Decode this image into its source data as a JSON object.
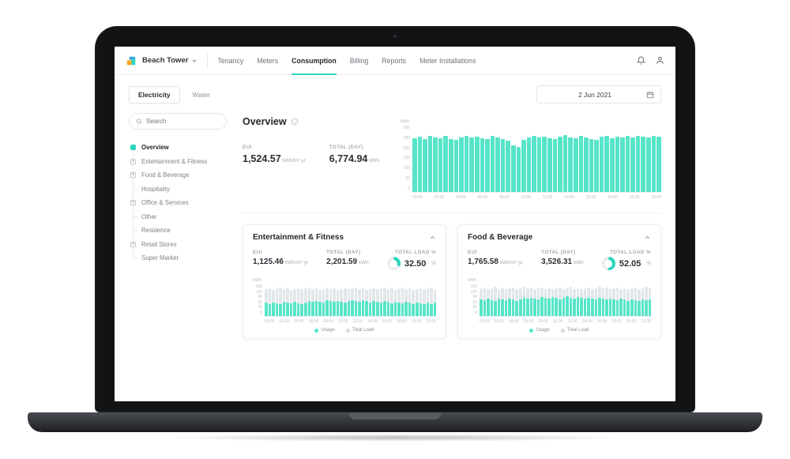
{
  "theme": {
    "accent": "#2BD4BD",
    "bar_fill": "#57E4C8",
    "bar_bg": "#E3E7EA"
  },
  "header": {
    "workspace": "Beach Tower",
    "nav_items": [
      "Tenancy",
      "Meters",
      "Consumption",
      "Billing",
      "Reports",
      "Meter Installations"
    ],
    "active_nav": "Consumption"
  },
  "toolbar": {
    "tabs": [
      "Electricity",
      "Water"
    ],
    "active_tab": "Electricity",
    "date_value": "2 Jun 2021"
  },
  "sidebar": {
    "search_placeholder": "Search",
    "tree": [
      {
        "label": "Overview",
        "type": "active"
      },
      {
        "label": "Entertainment & Fitness",
        "type": "expand"
      },
      {
        "label": "Food & Beverage",
        "type": "expand"
      },
      {
        "label": "Hospitality",
        "type": "leaf"
      },
      {
        "label": "Office & Services",
        "type": "expand"
      },
      {
        "label": "Other",
        "type": "leaf"
      },
      {
        "label": "Residence",
        "type": "leaf"
      },
      {
        "label": "Retail Stores",
        "type": "expand"
      },
      {
        "label": "Super Market",
        "type": "leaf"
      }
    ]
  },
  "overview": {
    "title": "Overview",
    "eui_label": "EUI",
    "eui_value": "1,524.57",
    "eui_unit": "kWh/m²·yr",
    "total_label": "TOTAL (DAY)",
    "total_value": "6,774.94",
    "total_unit": "kWh"
  },
  "cards": [
    {
      "title": "Entertainment & Fitness",
      "eui_label": "EUI",
      "eui_value": "1,125.46",
      "eui_unit": "kWh/m²·yr",
      "total_label": "TOTAL (DAY)",
      "total_value": "2,201.59",
      "total_unit": "kWh",
      "load_label": "TOTAL LOAD %",
      "load_value": "32.50",
      "load_unit": "%",
      "load_pct": 32.5
    },
    {
      "title": "Food & Beverage",
      "eui_label": "EUI",
      "eui_value": "1,765.58",
      "eui_unit": "kWh/m²·yr",
      "total_label": "TOTAL (DAY)",
      "total_value": "3,526.31",
      "total_unit": "kWh",
      "load_label": "TOTAL LOAD %",
      "load_value": "52.05",
      "load_unit": "%",
      "load_pct": 52.05
    }
  ],
  "chart_data": [
    {
      "type": "bar",
      "unit": "kWh",
      "ymax": 300,
      "y_ticks": [
        "300",
        "250",
        "200",
        "150",
        "100",
        "50",
        "0"
      ],
      "x_ticks": [
        "00:00",
        "02:00",
        "04:00",
        "06:00",
        "08:00",
        "10:00",
        "12:00",
        "14:00",
        "16:00",
        "18:00",
        "20:00",
        "22:00"
      ],
      "series": [
        {
          "name": "Usage",
          "values": [
            242,
            250,
            238,
            255,
            248,
            244,
            252,
            240,
            236,
            248,
            254,
            246,
            250,
            242,
            238,
            252,
            246,
            240,
            233,
            210,
            205,
            236,
            248,
            252,
            246,
            250,
            243,
            238,
            251,
            256,
            248,
            244,
            252,
            246,
            240,
            237,
            249,
            253,
            244,
            250,
            246,
            252,
            248,
            255,
            250,
            247,
            253,
            249
          ]
        }
      ]
    },
    {
      "type": "bar",
      "unit": "kWh",
      "ymax": 150,
      "y_ticks": [
        "150",
        "120",
        "90",
        "60",
        "30",
        "0"
      ],
      "x_ticks": [
        "00:00",
        "02:00",
        "04:00",
        "06:00",
        "08:00",
        "10:00",
        "12:00",
        "14:00",
        "16:00",
        "18:00",
        "20:00",
        "22:00"
      ],
      "series": [
        {
          "name": "Usage",
          "values": [
            62,
            58,
            65,
            60,
            55,
            68,
            63,
            59,
            66,
            61,
            57,
            64,
            70,
            66,
            72,
            68,
            63,
            75,
            70,
            66,
            73,
            69,
            64,
            71,
            76,
            72,
            67,
            74,
            70,
            65,
            72,
            68,
            63,
            70,
            66,
            61,
            68,
            64,
            59,
            66,
            62,
            57,
            64,
            60,
            55,
            62,
            58,
            63
          ]
        },
        {
          "name": "Total Load",
          "values": [
            128,
            132,
            125,
            130,
            135,
            127,
            131,
            124,
            129,
            133,
            126,
            130,
            136,
            128,
            132,
            125,
            129,
            134,
            127,
            131,
            124,
            128,
            133,
            126,
            130,
            135,
            127,
            131,
            124,
            129,
            133,
            126,
            130,
            136,
            128,
            132,
            125,
            129,
            134,
            127,
            131,
            124,
            128,
            133,
            126,
            130,
            135,
            128
          ]
        }
      ]
    },
    {
      "type": "bar",
      "unit": "kWh",
      "ymax": 150,
      "y_ticks": [
        "150",
        "120",
        "90",
        "60",
        "30",
        "0"
      ],
      "x_ticks": [
        "00:00",
        "02:00",
        "04:00",
        "06:00",
        "08:00",
        "10:00",
        "12:00",
        "14:00",
        "16:00",
        "18:00",
        "20:00",
        "22:00"
      ],
      "series": [
        {
          "name": "Usage",
          "values": [
            78,
            74,
            81,
            76,
            71,
            84,
            79,
            75,
            82,
            77,
            73,
            80,
            86,
            82,
            88,
            84,
            79,
            91,
            86,
            82,
            89,
            85,
            80,
            87,
            92,
            88,
            83,
            90,
            86,
            81,
            88,
            84,
            79,
            86,
            82,
            77,
            84,
            80,
            75,
            82,
            78,
            73,
            80,
            76,
            71,
            78,
            74,
            79
          ]
        },
        {
          "name": "Total Load",
          "values": [
            130,
            134,
            127,
            132,
            137,
            129,
            133,
            126,
            131,
            135,
            128,
            132,
            138,
            130,
            134,
            127,
            131,
            136,
            129,
            133,
            126,
            130,
            135,
            128,
            132,
            137,
            129,
            133,
            126,
            131,
            135,
            128,
            132,
            138,
            130,
            134,
            127,
            131,
            136,
            129,
            133,
            126,
            130,
            135,
            128,
            132,
            137,
            130
          ]
        }
      ]
    }
  ]
}
